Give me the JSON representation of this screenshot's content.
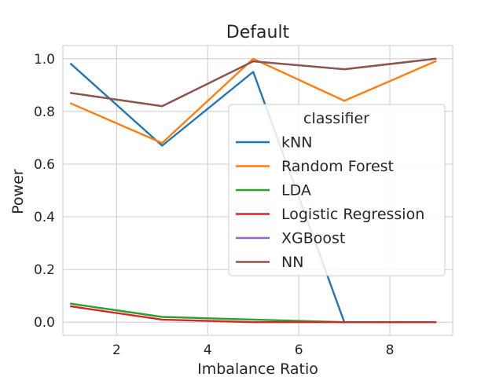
{
  "chart_data": {
    "type": "line",
    "title": "Default",
    "xlabel": "Imbalance Ratio",
    "ylabel": "Power",
    "xlim": [
      0.82,
      9.38
    ],
    "ylim": [
      -0.05,
      1.05
    ],
    "xticks": [
      2,
      4,
      6,
      8
    ],
    "yticks": [
      0.0,
      0.2,
      0.4,
      0.6,
      0.8,
      1.0
    ],
    "xtick_labels": [
      "2",
      "4",
      "6",
      "8"
    ],
    "ytick_labels": [
      "0.0",
      "0.2",
      "0.4",
      "0.6",
      "0.8",
      "1.0"
    ],
    "grid": true,
    "legend": {
      "title": "classifier",
      "placement": "center-right"
    },
    "x": [
      1,
      3,
      5,
      7,
      9
    ],
    "series": [
      {
        "name": "kNN",
        "color": "#1f77b4",
        "values": [
          0.98,
          0.67,
          0.95,
          0.0,
          null
        ]
      },
      {
        "name": "Random Forest",
        "color": "#ff7f0e",
        "values": [
          0.83,
          0.68,
          1.0,
          0.84,
          0.99
        ]
      },
      {
        "name": "LDA",
        "color": "#2ca02c",
        "values": [
          0.07,
          0.02,
          0.01,
          0.0,
          0.0
        ]
      },
      {
        "name": "Logistic Regression",
        "color": "#d62728",
        "values": [
          0.06,
          0.01,
          0.0,
          0.0,
          0.0
        ]
      },
      {
        "name": "XGBoost",
        "color": "#9467bd",
        "values": [
          0.87,
          0.82,
          0.99,
          0.96,
          1.0
        ]
      },
      {
        "name": "NN",
        "color": "#8c564b",
        "values": [
          0.87,
          0.82,
          0.99,
          0.96,
          1.0
        ]
      }
    ]
  }
}
